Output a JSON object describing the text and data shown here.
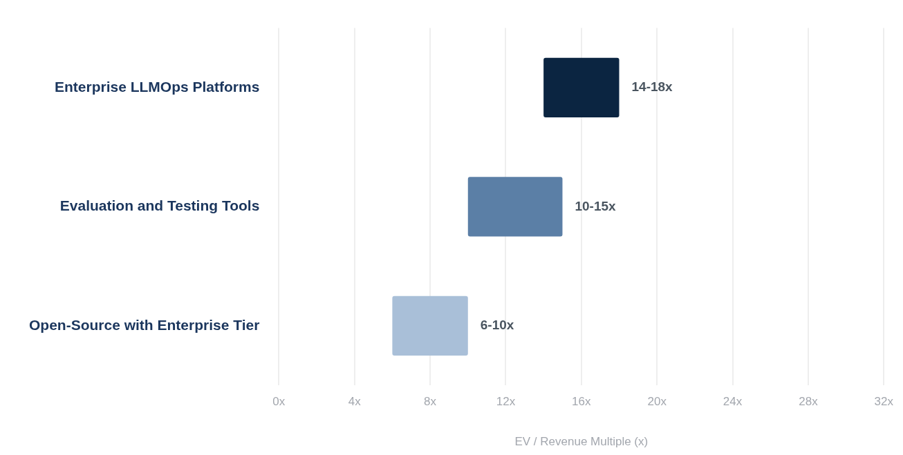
{
  "chart_data": {
    "type": "bar",
    "orientation": "horizontal",
    "xlabel": "EV / Revenue Multiple (x)",
    "categories": [
      "Enterprise LLMOps Platforms",
      "Evaluation and Testing Tools",
      "Open-Source with Enterprise Tier"
    ],
    "base": [
      14,
      10,
      6
    ],
    "values": [
      4,
      5,
      4
    ],
    "colors": [
      "#0b2541",
      "#5b7fa6",
      "#a9bfd8"
    ],
    "value_labels": [
      "14-18x",
      "10-15x",
      "6-10x"
    ],
    "xlim": [
      0,
      32
    ],
    "xticks": [
      {
        "value": 0,
        "label": "0x"
      },
      {
        "value": 4,
        "label": "4x"
      },
      {
        "value": 8,
        "label": "8x"
      },
      {
        "value": 12,
        "label": "12x"
      },
      {
        "value": 16,
        "label": "16x"
      },
      {
        "value": 20,
        "label": "20x"
      },
      {
        "value": 24,
        "label": "24x"
      },
      {
        "value": 28,
        "label": "28x"
      },
      {
        "value": 32,
        "label": "32x"
      }
    ],
    "grid": "x",
    "legend": false
  }
}
